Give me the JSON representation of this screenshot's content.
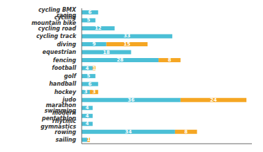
{
  "chart_data": {
    "type": "bar",
    "orientation": "horizontal",
    "stacked": true,
    "data_labels": true,
    "tick_labels": "y",
    "categories": [
      "cycling BMX racing",
      "cycling mountain bike",
      "cycling road",
      "cycling track",
      "diving",
      "equestrian",
      "fencing",
      "football",
      "golf",
      "handball",
      "hockey",
      "judo",
      "marathon swimming",
      "modern pentathlon",
      "rhytmic gymnastics",
      "rowing",
      "sailing"
    ],
    "series": [
      {
        "color": "#4BBFD6",
        "values": [
          6,
          5,
          12,
          33,
          9,
          18,
          28,
          4,
          5,
          6,
          3,
          36,
          4,
          4,
          4,
          34,
          2
        ],
        "value_labels": [
          "6",
          "5",
          "12",
          "33",
          "9",
          "18",
          "28",
          "4",
          "5",
          "6",
          "3",
          "36",
          "4",
          "4",
          "4",
          "34",
          null
        ]
      },
      {
        "color": "#F5A623",
        "values": [
          0,
          0,
          0,
          0,
          15,
          0,
          8,
          1,
          0,
          0,
          3,
          24,
          0,
          0,
          0,
          8,
          1
        ],
        "value_labels": [
          null,
          null,
          null,
          null,
          "15",
          null,
          "8",
          "1",
          null,
          null,
          "3",
          "24",
          null,
          null,
          null,
          "8",
          "1"
        ]
      }
    ],
    "xlim": [
      0,
      62
    ]
  }
}
